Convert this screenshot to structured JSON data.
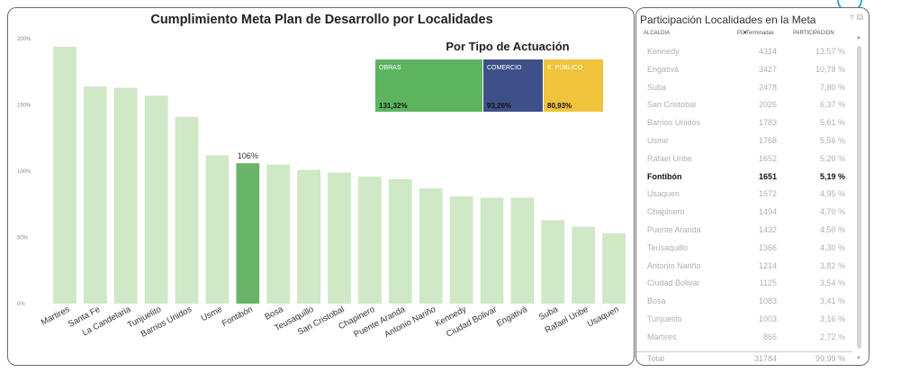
{
  "chart_data": {
    "type": "bar",
    "title": "Cumplimiento Meta Plan de Desarrollo por Localidades",
    "categories": [
      "Martires",
      "Santa Fe",
      "La Candelaria",
      "Tunjuelito",
      "Barrios Unidos",
      "Usme",
      "Fontibón",
      "Bosa",
      "Teusaquillo",
      "San Cristobal",
      "Chapinero",
      "Puente Aranda",
      "Antonio Nariño",
      "Kennedy",
      "Ciudad Bolivar",
      "Engativá",
      "Suba",
      "Rafael Uribe",
      "Usaquen"
    ],
    "values": [
      194,
      164,
      163,
      157,
      141,
      112,
      106,
      105,
      101,
      99,
      96,
      94,
      87,
      81,
      80,
      80,
      63,
      58,
      53
    ],
    "ylim": [
      0,
      200
    ],
    "yticks": [
      0,
      50,
      100,
      150,
      200
    ],
    "ytick_labels": [
      "0%",
      "50%",
      "100%",
      "150%",
      "200%"
    ],
    "highlight_index": 6,
    "highlight_label": "106%",
    "bar_color": "#cfe8c6",
    "highlight_color": "#6ab46a",
    "xlabel": "",
    "ylabel": ""
  },
  "tipo": {
    "title": "Por Tipo de Actuación",
    "items": [
      {
        "name": "OBRAS",
        "value": "131,32%",
        "color": "#5cb55e"
      },
      {
        "name": "COMERCIO",
        "value": "93,26%",
        "color": "#3e5088"
      },
      {
        "name": "E. PÚBLICO",
        "value": "80,93%",
        "color": "#efc33c"
      }
    ]
  },
  "table": {
    "title": "Participación Localidades en la Meta",
    "headers": [
      "ALCALDIA",
      "PD Terminadas",
      "PARTICIPACION"
    ],
    "rows": [
      {
        "name": "Kennedy",
        "terminadas": "4314",
        "pct": "13,57 %"
      },
      {
        "name": "Engativá",
        "terminadas": "3427",
        "pct": "10,78 %"
      },
      {
        "name": "Suba",
        "terminadas": "2478",
        "pct": "7,80 %"
      },
      {
        "name": "San Cristobal",
        "terminadas": "2026",
        "pct": "6,37 %"
      },
      {
        "name": "Barrios Unidos",
        "terminadas": "1783",
        "pct": "5,61 %"
      },
      {
        "name": "Usme",
        "terminadas": "1768",
        "pct": "5,56 %"
      },
      {
        "name": "Rafael Uribe",
        "terminadas": "1652",
        "pct": "5,20 %"
      },
      {
        "name": "Fontibón",
        "terminadas": "1651",
        "pct": "5,19 %",
        "highlight": true
      },
      {
        "name": "Usaquen",
        "terminadas": "1572",
        "pct": "4,95 %"
      },
      {
        "name": "Chapinero",
        "terminadas": "1494",
        "pct": "4,70 %"
      },
      {
        "name": "Puente Aranda",
        "terminadas": "1432",
        "pct": "4,50 %"
      },
      {
        "name": "Teusaquillo",
        "terminadas": "1366",
        "pct": "4,30 %"
      },
      {
        "name": "Antonio Nariño",
        "terminadas": "1214",
        "pct": "3,82 %"
      },
      {
        "name": "Ciudad Bolivar",
        "terminadas": "1125",
        "pct": "3,54 %"
      },
      {
        "name": "Bosa",
        "terminadas": "1083",
        "pct": "3,41 %"
      },
      {
        "name": "Tunjuelito",
        "terminadas": "1003",
        "pct": "3,16 %"
      },
      {
        "name": "Martires",
        "terminadas": "866",
        "pct": "2,72 %"
      }
    ],
    "total": {
      "label": "Total",
      "terminadas": "31784",
      "pct": "99,99 %"
    }
  }
}
